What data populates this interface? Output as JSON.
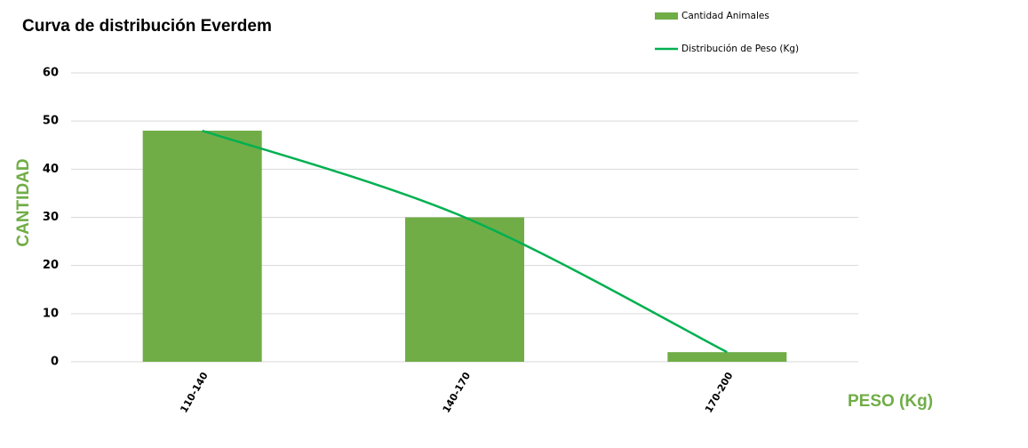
{
  "chart_data": {
    "type": "bar",
    "title": "Curva de distribución Everdem",
    "categories": [
      "110-140",
      "140-170",
      "170-200"
    ],
    "series": [
      {
        "name": "Cantidad Animales",
        "type": "bar",
        "color": "#70ad47",
        "values": [
          48,
          30,
          2
        ]
      },
      {
        "name": "Distribución de Peso (Kg)",
        "type": "line",
        "color": "#00b050",
        "values": [
          48,
          30,
          2
        ]
      }
    ],
    "x_label": "PESO (Kg)",
    "y_label": "CANTIDAD",
    "ylim": [
      0,
      60
    ],
    "yticks": [
      0,
      10,
      20,
      30,
      40,
      50,
      60
    ],
    "grid": true,
    "legend": "top-right"
  }
}
